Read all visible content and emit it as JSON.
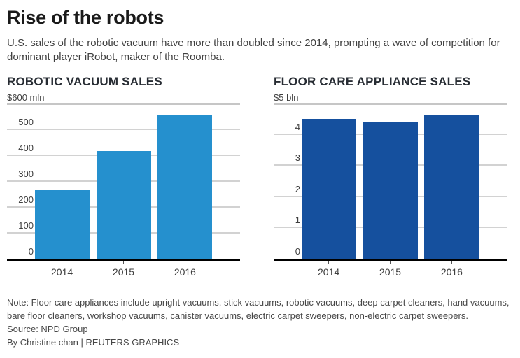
{
  "page": {
    "title": "Rise of the robots",
    "subtitle": "U.S. sales of the robotic vacuum have more than doubled since 2014, prompting a wave of competition for dominant player iRobot, maker of the Roomba."
  },
  "colors": {
    "light_blue": "#2590ce",
    "dark_blue": "#15509e",
    "gridline": "#d2d2d2",
    "axis": "#000000"
  },
  "chart_data": [
    {
      "type": "bar",
      "title": "ROBOTIC VACUUM SALES",
      "unit_label": "$600 mln",
      "categories": [
        "2014",
        "2015",
        "2016"
      ],
      "values": [
        265,
        415,
        555
      ],
      "ylim": [
        0,
        600
      ],
      "yticks": [
        0,
        100,
        200,
        300,
        400,
        500
      ],
      "grid": true,
      "legend": "none",
      "bar_color": "#2590ce"
    },
    {
      "type": "bar",
      "title": "FLOOR CARE APPLIANCE SALES",
      "unit_label": "$5 bln",
      "categories": [
        "2014",
        "2015",
        "2016"
      ],
      "values": [
        4.5,
        4.4,
        4.6
      ],
      "ylim": [
        0,
        5
      ],
      "yticks": [
        0,
        1,
        2,
        3,
        4
      ],
      "grid": true,
      "legend": "none",
      "bar_color": "#15509e"
    }
  ],
  "footer": {
    "note": "Note: Floor care appliances include upright vacuums, stick vacuums, robotic vacuums, deep carpet cleaners, hand vacuums, bare floor cleaners, workshop vacuums, canister vacuums, electric carpet sweepers, non-electric carpet sweepers.",
    "source": "Source: NPD Group",
    "byline": "By Christine chan | REUTERS GRAPHICS"
  }
}
